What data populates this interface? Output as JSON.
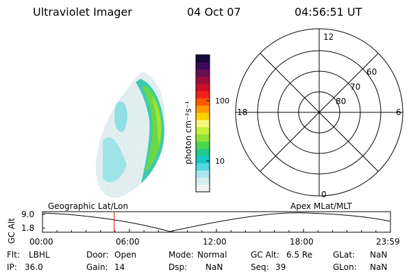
{
  "header": {
    "instrument": "Ultraviolet Imager",
    "date": "04 Oct 07",
    "time": "04:56:51 UT"
  },
  "colorbar": {
    "label": "photon cm⁻²s⁻¹",
    "tick_labels": [
      "100",
      "10"
    ],
    "tick_values": [
      100,
      10
    ],
    "scale": "log",
    "colors": [
      "#f2f2f2",
      "#d6eef0",
      "#a8e6ec",
      "#55d6e0",
      "#18c7c9",
      "#22c98a",
      "#4bd64b",
      "#8fe23a",
      "#c8ee3a",
      "#f5f87a",
      "#ffd000",
      "#ff9a00",
      "#ff5a00",
      "#f0201c",
      "#c8102a",
      "#9a0e3c",
      "#6a0f52",
      "#3a0a5a",
      "#140a3c"
    ]
  },
  "polar": {
    "ring_labels": [
      "60",
      "70",
      "80"
    ],
    "mlt_labels": {
      "top": "12",
      "left": "18",
      "right": "6",
      "bottom": "0"
    }
  },
  "timeline": {
    "ylabel": "GC Alt",
    "yticks": [
      "9.0",
      "1.8"
    ],
    "left_title": "Geographic Lat/Lon",
    "right_title": "Apex MLat/MLT",
    "xticks": [
      "00:00",
      "06:00",
      "12:00",
      "18:00",
      "23:59"
    ],
    "marker_time": "04:56:51"
  },
  "info": {
    "flt_label": "Flt:",
    "flt_value": "LBHL",
    "ip_label": "IP:",
    "ip_value": "36.0",
    "door_label": "Door:",
    "door_value": "Open",
    "gain_label": "Gain:",
    "gain_value": "14",
    "mode_label": "Mode:",
    "mode_value": "Normal",
    "dsp_label": "Dsp:",
    "dsp_value": "NaN",
    "gcalt_label": "GC Alt:",
    "gcalt_value": "6.5 Re",
    "seq_label": "Seq:",
    "seq_value": "39",
    "glat_label": "GLat:",
    "glat_value": "NaN",
    "glon_label": "GLon:",
    "glon_value": "NaN"
  },
  "palette": {
    "axis": "#000000",
    "marker": "#ff0000"
  }
}
